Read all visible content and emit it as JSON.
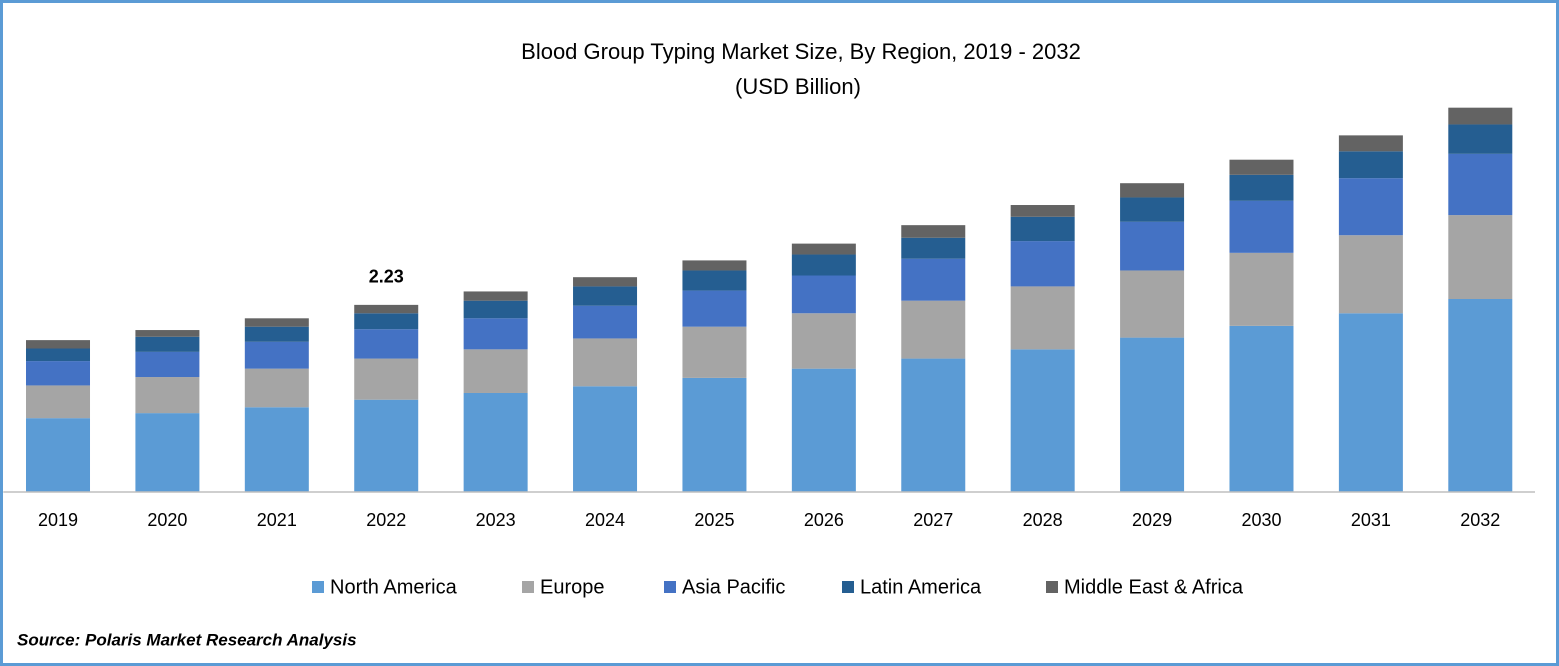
{
  "chart_data": {
    "type": "stacked_bar",
    "title": "Blood Group Typing Market Size, By Region, 2019 - 2032",
    "subtitle": "(USD Billion)",
    "source": "Source: Polaris Market Research Analysis",
    "categories": [
      "2019",
      "2020",
      "2021",
      "2022",
      "2023",
      "2024",
      "2025",
      "2026",
      "2027",
      "2028",
      "2029",
      "2030",
      "2031",
      "2032"
    ],
    "series": [
      {
        "name": "North America",
        "color": "#5b9bd5",
        "values": [
          0.88,
          0.94,
          1.01,
          1.1,
          1.18,
          1.26,
          1.36,
          1.47,
          1.59,
          1.7,
          1.84,
          1.98,
          2.13,
          2.3
        ]
      },
      {
        "name": "Europe",
        "color": "#a5a5a5",
        "values": [
          0.39,
          0.43,
          0.46,
          0.49,
          0.52,
          0.57,
          0.61,
          0.66,
          0.69,
          0.75,
          0.8,
          0.87,
          0.93,
          1.0
        ]
      },
      {
        "name": "Asia Pacific",
        "color": "#4472c4",
        "values": [
          0.29,
          0.3,
          0.32,
          0.35,
          0.37,
          0.39,
          0.43,
          0.45,
          0.5,
          0.54,
          0.58,
          0.62,
          0.68,
          0.73
        ]
      },
      {
        "name": "Latin America",
        "color": "#255e91",
        "values": [
          0.15,
          0.18,
          0.18,
          0.19,
          0.21,
          0.23,
          0.24,
          0.25,
          0.25,
          0.29,
          0.29,
          0.31,
          0.32,
          0.35
        ]
      },
      {
        "name": "Middle East & Africa",
        "color": "#636363",
        "values": [
          0.1,
          0.08,
          0.1,
          0.1,
          0.11,
          0.11,
          0.12,
          0.13,
          0.15,
          0.14,
          0.17,
          0.18,
          0.19,
          0.2
        ]
      }
    ],
    "annotations": [
      {
        "category": "2022",
        "value": 2.23
      }
    ],
    "ylim": [
      0,
      4.6
    ],
    "legend": "bottom"
  }
}
